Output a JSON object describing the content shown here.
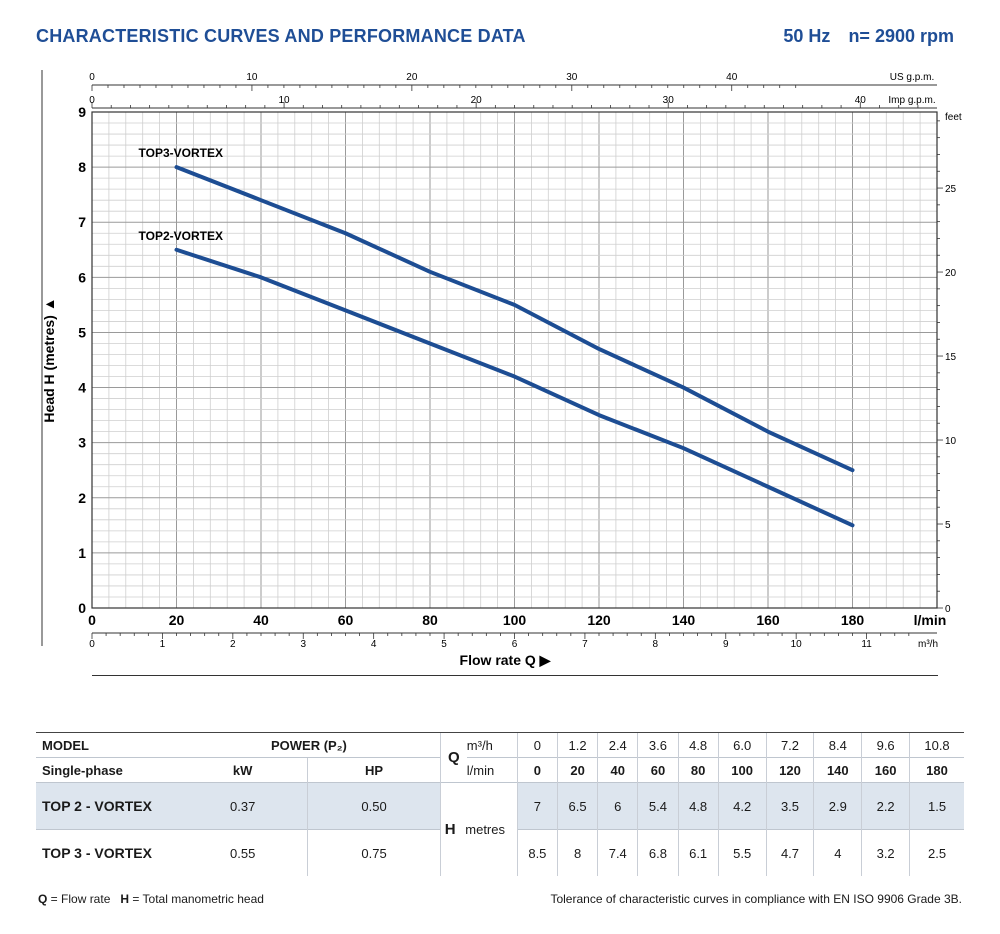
{
  "header": {
    "title": "CHARACTERISTIC CURVES AND PERFORMANCE DATA",
    "freq": "50 Hz",
    "speed": "n= 2900 rpm"
  },
  "colors": {
    "brand": "#1f4e96",
    "curve": "#1d4d93",
    "grid": "#bcbcbc",
    "shade": "#dde5ee"
  },
  "chart_data": {
    "type": "line",
    "title": "CHARACTERISTIC CURVES AND PERFORMANCE DATA",
    "xlabel": "Flow rate Q",
    "ylabel": "Head H (metres)",
    "xlim": [
      0,
      200
    ],
    "ylim": [
      0,
      9
    ],
    "x_unit": "l/min",
    "x_ticks": [
      "0",
      "20",
      "40",
      "60",
      "80",
      "100",
      "120",
      "140",
      "160",
      "180"
    ],
    "y_ticks": [
      "0",
      "1",
      "2",
      "3",
      "4",
      "5",
      "6",
      "7",
      "8",
      "9"
    ],
    "x": [
      20,
      40,
      60,
      80,
      100,
      120,
      140,
      160,
      180
    ],
    "series": [
      {
        "name": "TOP3-VORTEX",
        "values": [
          8,
          7.4,
          6.8,
          6.1,
          5.5,
          4.7,
          4,
          3.2,
          2.5
        ]
      },
      {
        "name": "TOP2-VORTEX",
        "values": [
          6.5,
          6,
          5.4,
          4.8,
          4.2,
          3.5,
          2.9,
          2.2,
          1.5
        ]
      }
    ],
    "secondary_axes": {
      "us_gpm": {
        "label": "US g.p.m.",
        "ticks": [
          "0",
          "10",
          "20",
          "30",
          "40"
        ],
        "values": [
          0,
          10,
          20,
          30,
          40
        ],
        "per_lmin": 0.264172
      },
      "imp_gpm": {
        "label": "Imp g.p.m.",
        "ticks": [
          "0",
          "10",
          "20",
          "30",
          "40"
        ],
        "values": [
          0,
          10,
          20,
          30,
          40
        ],
        "per_lmin": 0.219969
      },
      "m3h": {
        "label": "m³/h",
        "ticks": [
          "0",
          "1",
          "2",
          "3",
          "4",
          "5",
          "6",
          "7",
          "8",
          "9",
          "10",
          "11"
        ],
        "values": [
          0,
          1,
          2,
          3,
          4,
          5,
          6,
          7,
          8,
          9,
          10,
          11
        ],
        "per_lmin": 0.06
      },
      "feet": {
        "label": "feet",
        "ticks": [
          "0",
          "5",
          "10",
          "15",
          "20",
          "25"
        ],
        "values": [
          0,
          5,
          10,
          15,
          20,
          25
        ],
        "per_metre": 3.28084
      }
    }
  },
  "table": {
    "model_label": "MODEL",
    "phase_label": "Single-phase",
    "power_label": "POWER (P₂)",
    "kw_label": "kW",
    "hp_label": "HP",
    "q_symbol": "Q",
    "q_unit1": "m³/h",
    "q_unit2": "l/min",
    "h_symbol": "H",
    "h_unit": "metres",
    "m3h": [
      "0",
      "1.2",
      "2.4",
      "3.6",
      "4.8",
      "6.0",
      "7.2",
      "8.4",
      "9.6",
      "10.8"
    ],
    "lmin": [
      "0",
      "20",
      "40",
      "60",
      "80",
      "100",
      "120",
      "140",
      "160",
      "180"
    ],
    "rows": [
      {
        "model": "TOP 2 - VORTEX",
        "kw": "0.37",
        "hp": "0.50",
        "head": [
          "7",
          "6.5",
          "6",
          "5.4",
          "4.8",
          "4.2",
          "3.5",
          "2.9",
          "2.2",
          "1.5"
        ]
      },
      {
        "model": "TOP 3 - VORTEX",
        "kw": "0.55",
        "hp": "0.75",
        "head": [
          "8.5",
          "8",
          "7.4",
          "6.8",
          "6.1",
          "5.5",
          "4.7",
          "4",
          "3.2",
          "2.5"
        ]
      }
    ]
  },
  "footer": {
    "q_sym": "Q",
    "q_text": " = Flow rate",
    "h_sym": "H",
    "h_text": " = Total manometric head",
    "tolerance": "Tolerance of characteristic curves in compliance with EN ISO 9906 Grade 3B."
  }
}
